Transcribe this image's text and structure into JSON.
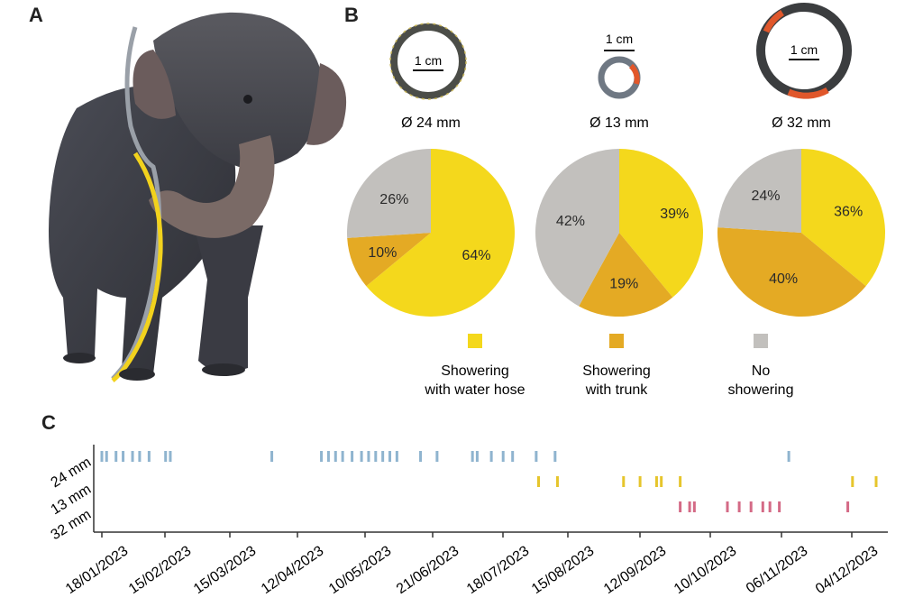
{
  "panels": {
    "a": "A",
    "b": "B",
    "c": "C"
  },
  "rings": [
    {
      "scale": "1 cm",
      "diameter": "Ø 24 mm"
    },
    {
      "scale": "1 cm",
      "diameter": "Ø 13 mm"
    },
    {
      "scale": "1 cm",
      "diameter": "Ø 32 mm"
    }
  ],
  "colors": {
    "hose": "#f4d81c",
    "trunk": "#e4aa24",
    "none": "#c2c0bd",
    "mark_24": "#8fb4cf",
    "mark_13": "#e6c52c",
    "mark_32": "#d46a86"
  },
  "legend": [
    {
      "line1": "Showering",
      "line2": "with water hose",
      "key": "hose"
    },
    {
      "line1": "Showering",
      "line2": "with trunk",
      "key": "trunk"
    },
    {
      "line1": "No",
      "line2": "showering",
      "key": "none"
    }
  ],
  "chart_data": [
    {
      "type": "pie",
      "title": "Ø 24 mm",
      "slices": [
        {
          "label": "Showering with water hose",
          "value": 64,
          "text": "64%"
        },
        {
          "label": "Showering with trunk",
          "value": 10,
          "text": "10%"
        },
        {
          "label": "No showering",
          "value": 26,
          "text": "26%"
        }
      ]
    },
    {
      "type": "pie",
      "title": "Ø 13 mm",
      "slices": [
        {
          "label": "Showering with water hose",
          "value": 39,
          "text": "39%"
        },
        {
          "label": "Showering with trunk",
          "value": 19,
          "text": "19%"
        },
        {
          "label": "No showering",
          "value": 42,
          "text": "42%"
        }
      ]
    },
    {
      "type": "pie",
      "title": "Ø 32 mm",
      "slices": [
        {
          "label": "Showering with water hose",
          "value": 36,
          "text": "36%"
        },
        {
          "label": "Showering with trunk",
          "value": 40,
          "text": "40%"
        },
        {
          "label": "No showering",
          "value": 24,
          "text": "24%"
        }
      ]
    },
    {
      "type": "scatter",
      "subtype": "event-raster",
      "xticks": [
        "18/01/2023",
        "15/02/2023",
        "15/03/2023",
        "12/04/2023",
        "10/05/2023",
        "21/06/2023",
        "18/07/2023",
        "15/08/2023",
        "12/09/2023",
        "10/10/2023",
        "06/11/2023",
        "04/12/2023"
      ],
      "xlim": [
        "2023-01-18",
        "2023-12-12"
      ],
      "series": [
        {
          "name": "24 mm",
          "color_key": "mark_24",
          "dates": [
            "2023-01-18",
            "2023-01-20",
            "2023-01-24",
            "2023-01-27",
            "2023-01-31",
            "2023-02-03",
            "2023-02-07",
            "2023-02-14",
            "2023-02-16",
            "2023-03-31",
            "2023-04-21",
            "2023-04-24",
            "2023-04-27",
            "2023-04-30",
            "2023-05-04",
            "2023-05-08",
            "2023-05-11",
            "2023-05-14",
            "2023-05-17",
            "2023-05-20",
            "2023-05-23",
            "2023-06-02",
            "2023-06-09",
            "2023-06-24",
            "2023-06-26",
            "2023-07-02",
            "2023-07-07",
            "2023-07-11",
            "2023-07-21",
            "2023-07-29",
            "2023-11-05"
          ]
        },
        {
          "name": "13 mm",
          "color_key": "mark_13",
          "dates": [
            "2023-07-22",
            "2023-07-30",
            "2023-08-27",
            "2023-09-03",
            "2023-09-10",
            "2023-09-12",
            "2023-09-20",
            "2023-12-02",
            "2023-12-12"
          ]
        },
        {
          "name": "32 mm",
          "color_key": "mark_32",
          "dates": [
            "2023-09-20",
            "2023-09-24",
            "2023-09-26",
            "2023-10-10",
            "2023-10-15",
            "2023-10-20",
            "2023-10-25",
            "2023-10-28",
            "2023-11-01",
            "2023-11-30"
          ]
        }
      ]
    }
  ]
}
